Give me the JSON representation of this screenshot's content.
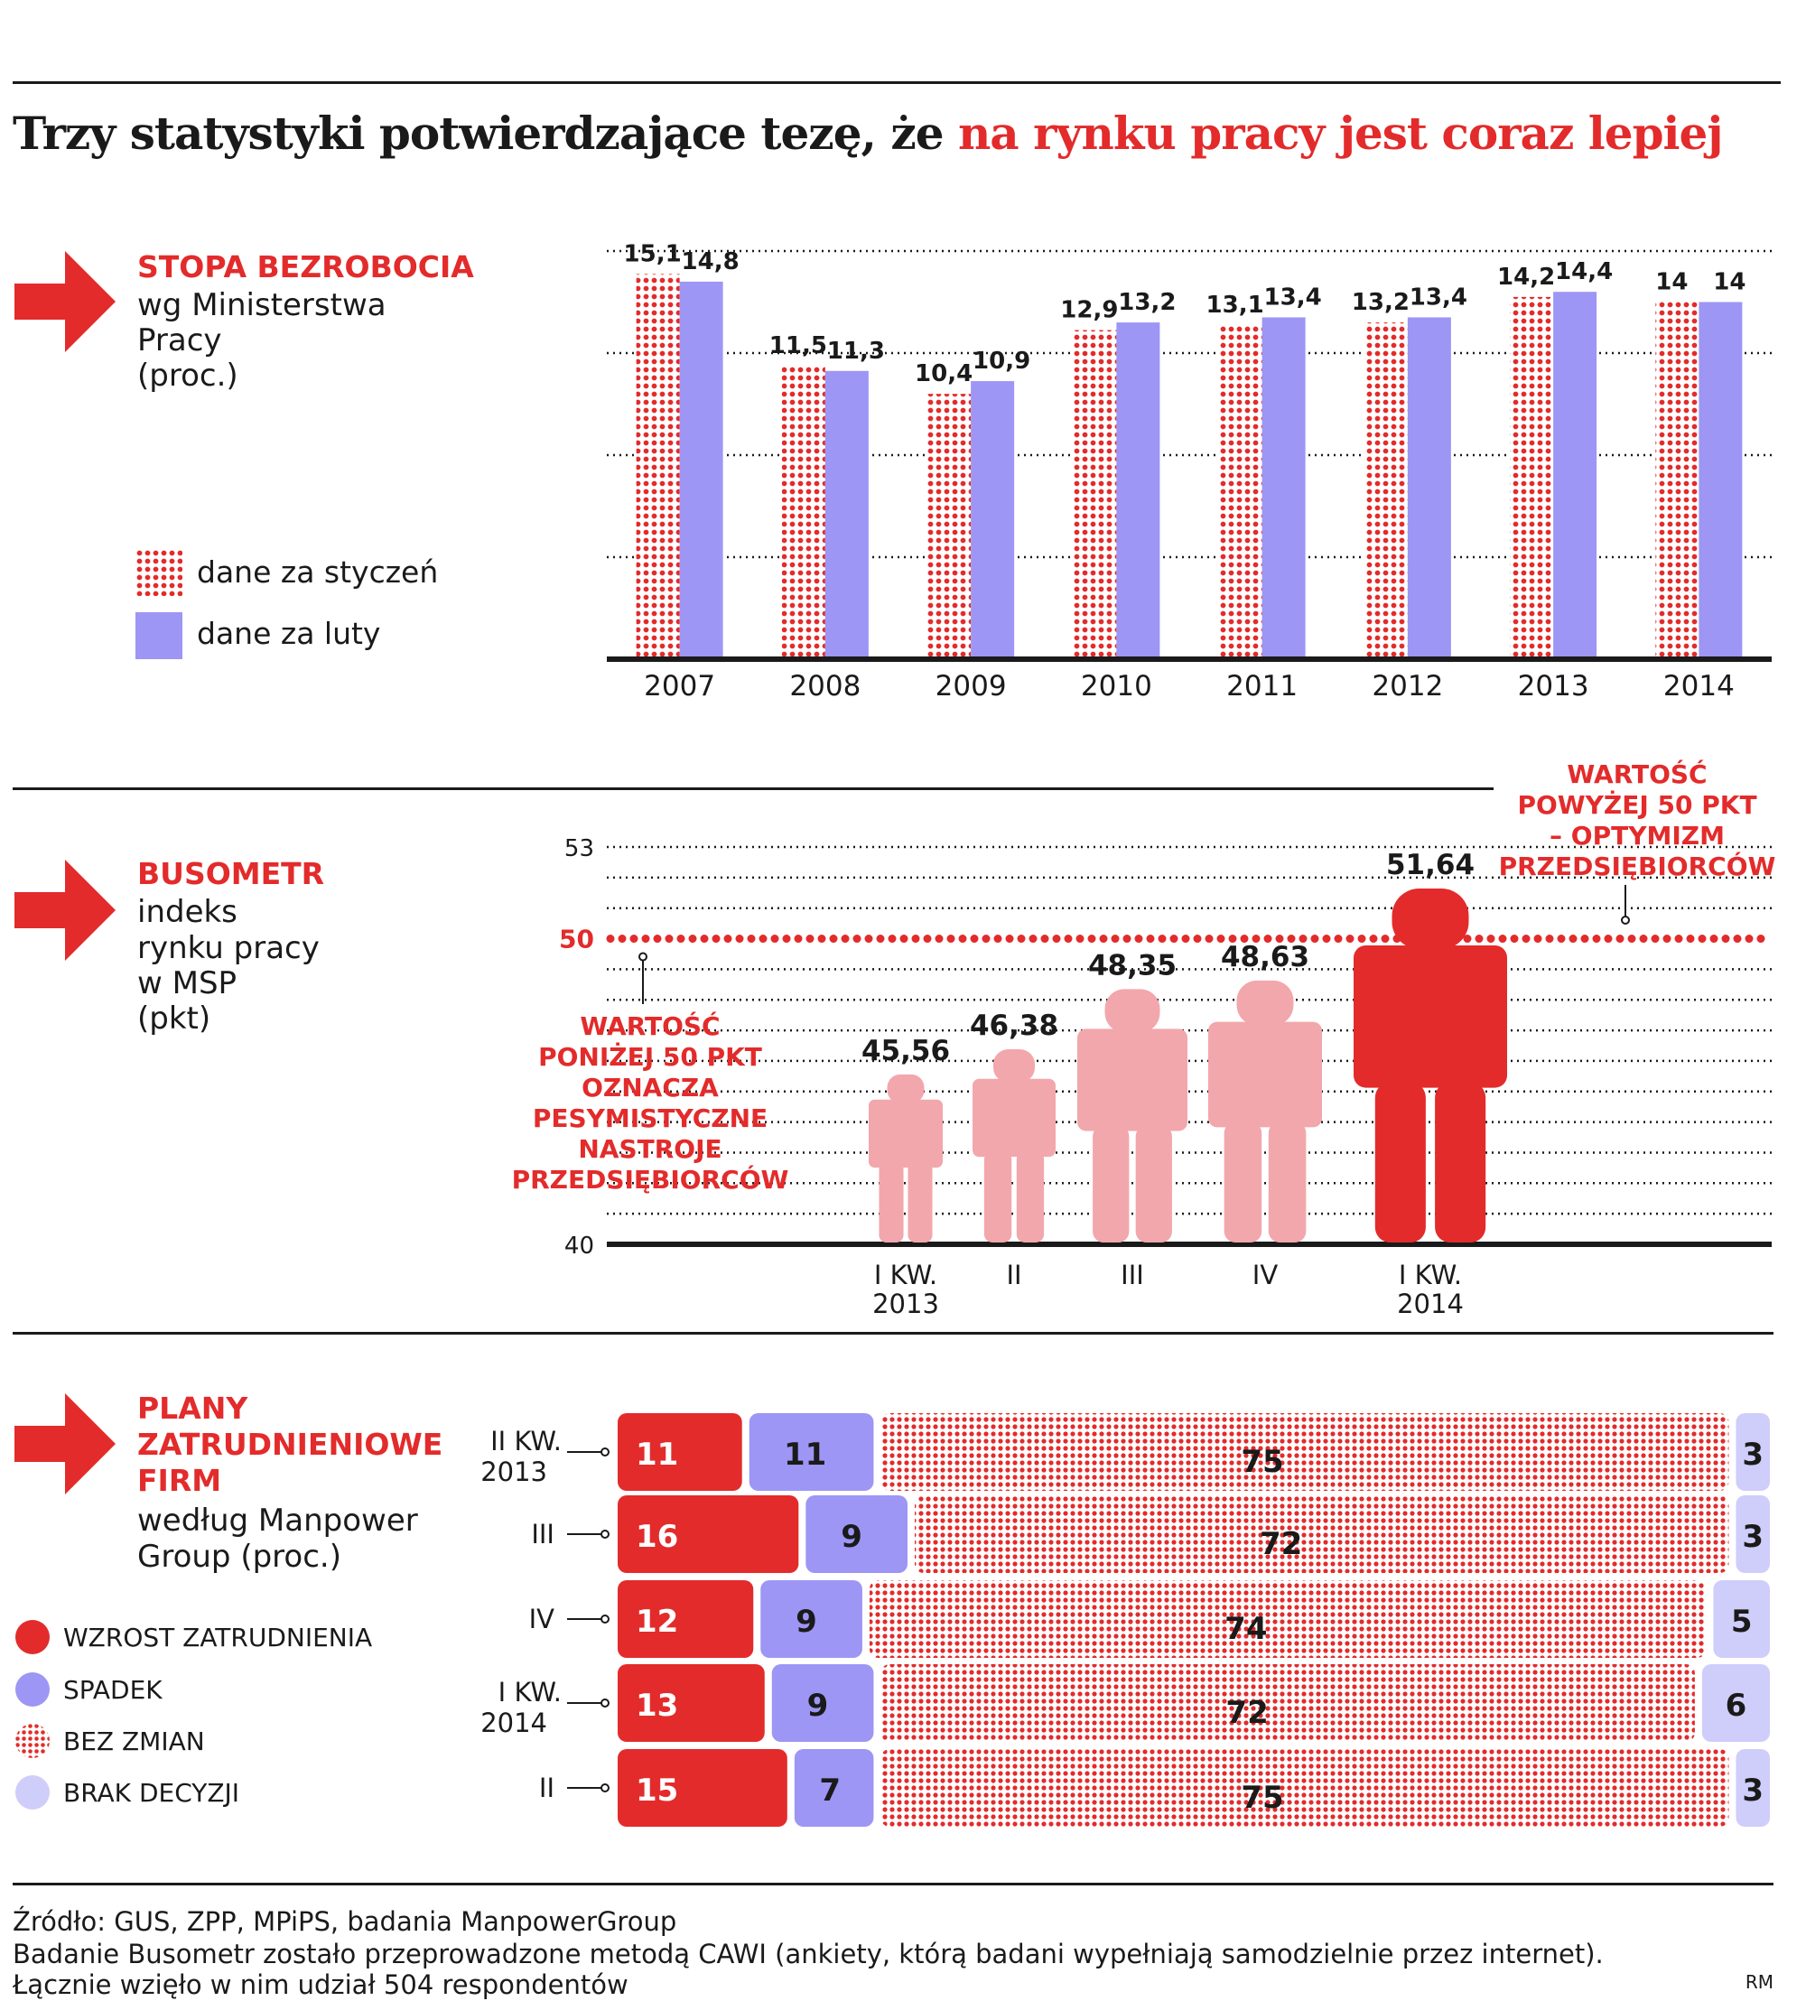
{
  "title": {
    "main": "Trzy statystyki potwierdzające tezę, że ",
    "highlight": "na rynku pracy jest coraz lepiej"
  },
  "colors": {
    "red": "#e32b2b",
    "violet": "#9d96f5",
    "pale_violet": "#cfcdfa",
    "pink": "#f2a7ac",
    "dark": "#1a1a1a"
  },
  "section1": {
    "title": "STOPA BEZROBOCIA",
    "subtitle_lines": [
      "wg Ministerstwa",
      "Pracy",
      "(proc.)"
    ],
    "legend": {
      "jan": "dane za styczeń",
      "feb": "dane za luty"
    }
  },
  "section2": {
    "title": "BUSOMETR",
    "subtitle_lines": [
      "indeks",
      "rynku pracy",
      "w MSP",
      "(pkt)"
    ],
    "note_left": [
      "WARTOŚĆ",
      "PONIŻEJ 50 PKT",
      "OZNACZA",
      "PESYMISTYCZNE",
      "NASTROJE",
      "PRZEDSIĘBIORCÓW"
    ],
    "note_right": [
      "WARTOŚĆ",
      "POWYŻEJ 50 PKT",
      "– OPTYMIZM",
      "PRZEDSIĘBIORCÓW"
    ]
  },
  "section3": {
    "title_lines": [
      "PLANY",
      "ZATRUDNIENIOWE",
      "FIRM"
    ],
    "subtitle_lines": [
      "według Manpower",
      "Group (proc.)"
    ],
    "legend": [
      {
        "label": "WZROST ZATRUDNIENIA",
        "icon": "red-dot-icon"
      },
      {
        "label": "SPADEK",
        "icon": "violet-dot-icon"
      },
      {
        "label": "BEZ ZMIAN",
        "icon": "dotted-dot-icon"
      },
      {
        "label": "BRAK DECYZJI",
        "icon": "pale-dot-icon"
      }
    ]
  },
  "chart_data": [
    {
      "type": "bar",
      "title": "STOPA BEZROBOCIA",
      "categories": [
        "2007",
        "2008",
        "2009",
        "2010",
        "2011",
        "2012",
        "2013",
        "2014"
      ],
      "series": [
        {
          "name": "dane za styczeń",
          "values": [
            15.1,
            11.5,
            10.4,
            12.9,
            13.1,
            13.2,
            14.2,
            14
          ],
          "labels": [
            "15,1",
            "11,5",
            "10,4",
            "12,9",
            "13,1",
            "13,2",
            "14,2",
            "14"
          ]
        },
        {
          "name": "dane za luty",
          "values": [
            14.8,
            11.3,
            10.9,
            13.2,
            13.4,
            13.4,
            14.4,
            14
          ],
          "labels": [
            "14,8",
            "11,3",
            "10,9",
            "13,2",
            "13,4",
            "13,4",
            "14,4",
            "14"
          ]
        }
      ],
      "ylim": [
        0,
        16
      ],
      "grid": true,
      "legend": "left"
    },
    {
      "type": "bar",
      "title": "BUSOMETR",
      "categories": [
        "I KW.\n2013",
        "II",
        "III",
        "IV",
        "I KW.\n2014"
      ],
      "category_lines": [
        [
          "I KW.",
          "2013"
        ],
        [
          "II"
        ],
        [
          "III"
        ],
        [
          "IV"
        ],
        [
          "I KW.",
          "2014"
        ]
      ],
      "values": [
        45.56,
        46.38,
        48.35,
        48.63,
        51.64
      ],
      "labels": [
        "45,56",
        "46,38",
        "48,35",
        "48,63",
        "51,64"
      ],
      "ylim": [
        40,
        53
      ],
      "yticks": [
        "40",
        "50",
        "53"
      ],
      "threshold": 50,
      "grid": true
    },
    {
      "type": "bar",
      "title": "PLANY ZATRUDNIENIOWE FIRM",
      "categories": [
        [
          "II KW.",
          "2013"
        ],
        [
          "III"
        ],
        [
          "IV"
        ],
        [
          "I KW.",
          "2014"
        ],
        [
          "II"
        ]
      ],
      "series": [
        {
          "name": "WZROST ZATRUDNIENIA",
          "values": [
            11,
            16,
            12,
            13,
            15
          ]
        },
        {
          "name": "SPADEK",
          "values": [
            11,
            9,
            9,
            9,
            7
          ]
        },
        {
          "name": "BEZ ZMIAN",
          "values": [
            75,
            72,
            74,
            72,
            75
          ]
        },
        {
          "name": "BRAK DECYZJI",
          "values": [
            3,
            3,
            5,
            6,
            3
          ]
        }
      ],
      "stacked": true,
      "orientation": "horizontal"
    }
  ],
  "footer": {
    "lines": [
      "Źródło: GUS, ZPP, MPiPS, badania ManpowerGroup",
      "Badanie Busometr zostało przeprowadzone metodą CAWI (ankiety, którą badani wypełniają samodzielnie przez internet).",
      "Łącznie wzięło w nim udział 504 respondentów"
    ],
    "initials": "RM"
  }
}
